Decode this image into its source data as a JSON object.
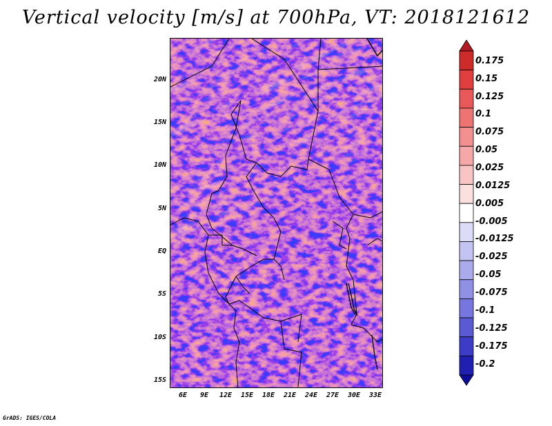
{
  "title": "Vertical velocity [m/s] at 700hPa, VT: 2018121612",
  "credit": "GrADS: IGES/COLA",
  "map": {
    "lat_labels": [
      "20N",
      "15N",
      "10N",
      "5N",
      "EQ",
      "5S",
      "10S",
      "15S"
    ],
    "lat_values": [
      20,
      15,
      10,
      5,
      0,
      -5,
      -10,
      -15
    ],
    "lon_labels": [
      "6E",
      "9E",
      "12E",
      "15E",
      "18E",
      "21E",
      "24E",
      "27E",
      "30E",
      "33E"
    ],
    "lon_values": [
      6,
      9,
      12,
      15,
      18,
      21,
      24,
      27,
      30,
      33
    ],
    "lat_range": [
      -16,
      25
    ],
    "lon_range": [
      4,
      34
    ]
  },
  "colorbar": {
    "labels": [
      "0.175",
      "0.15",
      "0.125",
      "0.1",
      "0.075",
      "0.05",
      "0.025",
      "0.0125",
      "0.005",
      "-0.005",
      "-0.0125",
      "-0.025",
      "-0.05",
      "-0.075",
      "-0.1",
      "-0.125",
      "-0.175",
      "-0.2"
    ],
    "colors": [
      "#b11a22",
      "#cd2a2a",
      "#e03e3e",
      "#e85858",
      "#ee7474",
      "#f29090",
      "#f6a8a8",
      "#f9c4c4",
      "#fce0e0",
      "#ffffff",
      "#dcdcf8",
      "#c4c4f2",
      "#aaaaec",
      "#9090e6",
      "#7676de",
      "#5a5ad4",
      "#3c3cc6",
      "#2020b0",
      "#0c0c96"
    ]
  }
}
